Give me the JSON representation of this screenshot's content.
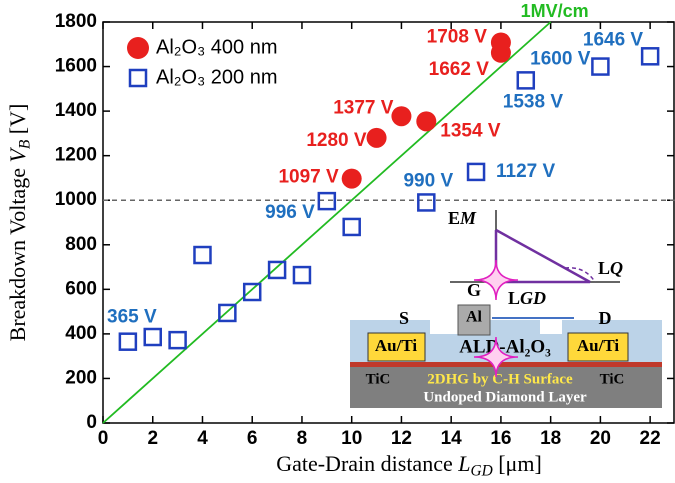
{
  "chart_data": {
    "type": "scatter",
    "x_label": [
      "Gate-Drain distance ",
      "L",
      "GD",
      " [μm]"
    ],
    "y_label": [
      "Breakdown Voltage ",
      "V",
      "B",
      " [V]"
    ],
    "xlim": [
      0,
      23
    ],
    "ylim": [
      0,
      1800
    ],
    "xticks": [
      0,
      2,
      4,
      6,
      8,
      10,
      12,
      14,
      16,
      18,
      20,
      22
    ],
    "yticks": [
      0,
      200,
      400,
      600,
      800,
      1000,
      1200,
      1400,
      1600,
      1800
    ],
    "series": [
      {
        "name": "Al₂O₃ 400 nm",
        "color": "#e8201e",
        "marker": "circle",
        "x": [
          10,
          11,
          12,
          13,
          16,
          16
        ],
        "values": [
          1097,
          1280,
          1377,
          1354,
          1662,
          1708
        ],
        "value_labels": [
          "1097 V",
          "1280 V",
          "1377 V",
          "1354 V",
          "1662 V",
          "1708 V"
        ]
      },
      {
        "name": "Al₂O₃ 200 nm",
        "color": "#1f3fbf",
        "label_color": "#1f6fbf",
        "marker": "square",
        "x": [
          1,
          2,
          3,
          4,
          5,
          6,
          7,
          8,
          9,
          10,
          13,
          15,
          17,
          20,
          22
        ],
        "values": [
          365,
          386,
          372,
          754,
          494,
          588,
          687,
          664,
          996,
          880,
          990,
          1127,
          1538,
          1600,
          1646
        ],
        "value_labels": [
          "365 V",
          null,
          null,
          null,
          null,
          null,
          null,
          null,
          "996 V",
          null,
          "990 V",
          "1127 V",
          "1538 V",
          "1600 V",
          "1646 V"
        ]
      }
    ],
    "reference_line": {
      "label": "1MV/cm",
      "slope": 100,
      "color": "#22bb22"
    },
    "hline": 1000,
    "inset": {
      "e_m": [
        "E",
        "M"
      ],
      "l_q": [
        "L",
        "Q"
      ],
      "gate": "G",
      "l_gd": [
        "L",
        "GD"
      ],
      "source": "S",
      "drain": "D",
      "gate_metal": "Al",
      "contact_left": "Au/Ti",
      "contact_right": "Au/Ti",
      "dielectric": "ALD-Al₂O₃",
      "tic_left": "TiC",
      "tic_right": "TiC",
      "channel": "2DHG by C-H Surface",
      "substrate": "Undoped Diamond Layer"
    }
  }
}
